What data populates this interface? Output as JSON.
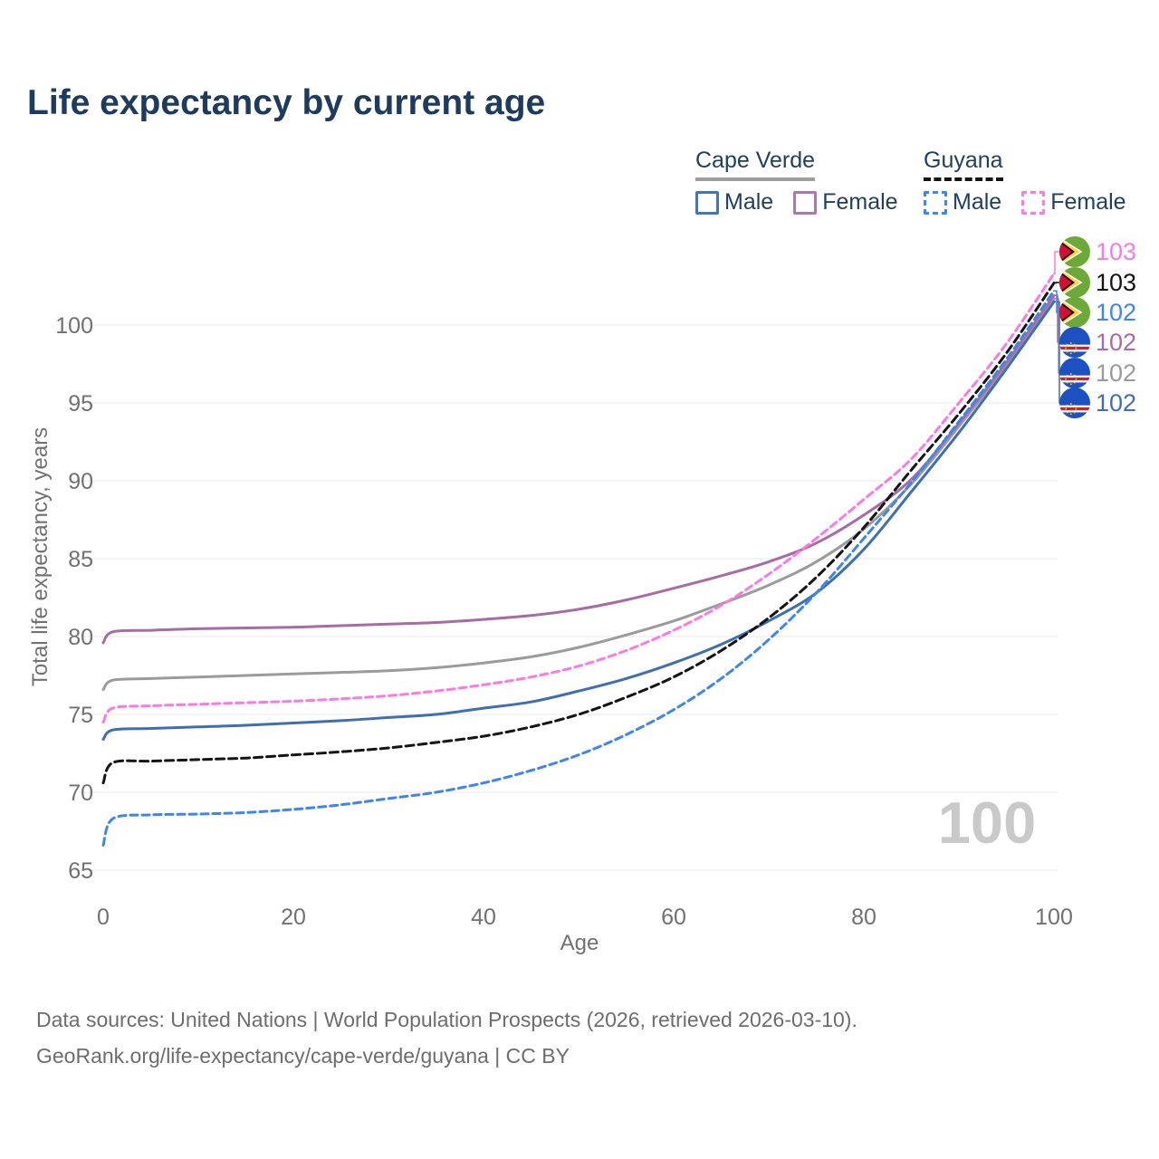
{
  "title": "Life expectancy by current age",
  "legend": {
    "groups": [
      {
        "label": "Cape Verde",
        "line_style": "solid",
        "line_color": "#9e9e9e",
        "items": [
          {
            "label": "Male",
            "color": "#4574ba",
            "dashed": false
          },
          {
            "label": "Female",
            "color": "#b076af",
            "dashed": false
          }
        ]
      },
      {
        "label": "Guyana",
        "line_style": "dashed",
        "line_color": "#141414",
        "items": [
          {
            "label": "Male",
            "color": "#3f86f0",
            "dashed": true
          },
          {
            "label": "Female",
            "color": "#fc7ae3",
            "dashed": true
          }
        ]
      }
    ]
  },
  "chart_data": {
    "type": "line",
    "title": "Life expectancy by current age",
    "xlabel": "Age",
    "ylabel": "Total life expectancy, years",
    "xticks": [
      0,
      20,
      40,
      60,
      80,
      100
    ],
    "yticks": [
      65,
      70,
      75,
      80,
      85,
      90,
      95,
      100
    ],
    "xlim": [
      0,
      100
    ],
    "ylim": [
      64,
      104
    ],
    "grid": "horizontal",
    "legend_position": "top-right",
    "watermark": "100",
    "x": [
      0,
      1,
      5,
      10,
      15,
      20,
      25,
      30,
      35,
      40,
      45,
      50,
      55,
      60,
      65,
      70,
      75,
      80,
      85,
      90,
      95,
      100
    ],
    "series": [
      {
        "name": "Cape Verde Both sexes",
        "country": "Cape Verde",
        "sex": "Both",
        "color": "#9b9b9b",
        "dash": null,
        "label_row": 4,
        "end_label": "102",
        "values": [
          76.6,
          77.2,
          77.3,
          77.4,
          77.5,
          77.6,
          77.7,
          77.8,
          78.0,
          78.3,
          78.7,
          79.3,
          80.1,
          81.0,
          82.1,
          83.3,
          84.8,
          86.9,
          89.8,
          93.5,
          97.4,
          101.7
        ]
      },
      {
        "name": "Cape Verde Female",
        "country": "Cape Verde",
        "sex": "Female",
        "color": "#a76ba6",
        "dash": null,
        "label_row": 3,
        "end_label": "102",
        "values": [
          79.6,
          80.3,
          80.4,
          80.5,
          80.55,
          80.6,
          80.7,
          80.8,
          80.9,
          81.1,
          81.35,
          81.75,
          82.35,
          83.1,
          83.9,
          84.8,
          86.0,
          87.8,
          90.1,
          93.7,
          97.6,
          101.9
        ]
      },
      {
        "name": "Cape Verde Male",
        "country": "Cape Verde",
        "sex": "Male",
        "color": "#3f6eb5",
        "dash": null,
        "label_row": 5,
        "end_label": "102",
        "values": [
          73.4,
          74.0,
          74.1,
          74.2,
          74.3,
          74.45,
          74.6,
          74.8,
          75.0,
          75.4,
          75.8,
          76.5,
          77.3,
          78.3,
          79.5,
          81.0,
          82.8,
          85.6,
          89.3,
          93.1,
          97.2,
          101.5
        ]
      },
      {
        "name": "Guyana Male",
        "country": "Guyana",
        "sex": "Male",
        "color": "#3d85f2",
        "dash": [
          8,
          5
        ],
        "label_row": 2,
        "end_label": "102",
        "values": [
          66.6,
          68.3,
          68.55,
          68.6,
          68.7,
          68.9,
          69.2,
          69.6,
          70.0,
          70.6,
          71.4,
          72.4,
          73.7,
          75.3,
          77.3,
          79.8,
          82.8,
          86.3,
          89.9,
          93.8,
          97.8,
          102.2
        ]
      },
      {
        "name": "Guyana Both sexes",
        "country": "Guyana",
        "sex": "Both",
        "color": "#141414",
        "dash": [
          9,
          5
        ],
        "label_row": 1,
        "end_label": "103",
        "values": [
          70.6,
          71.9,
          72.0,
          72.1,
          72.2,
          72.4,
          72.6,
          72.85,
          73.2,
          73.6,
          74.2,
          75.0,
          76.1,
          77.4,
          79.1,
          81.2,
          83.8,
          87.0,
          90.7,
          94.3,
          98.2,
          102.7
        ]
      },
      {
        "name": "Guyana Female",
        "country": "Guyana",
        "sex": "Female",
        "color": "#fb7ae0",
        "dash": [
          8,
          5
        ],
        "label_row": 0,
        "end_label": "103",
        "values": [
          74.5,
          75.4,
          75.55,
          75.65,
          75.75,
          75.85,
          76.0,
          76.2,
          76.5,
          76.9,
          77.4,
          78.1,
          79.1,
          80.4,
          82.0,
          84.0,
          86.3,
          88.8,
          91.4,
          95.0,
          98.8,
          103.3
        ]
      }
    ]
  },
  "end_labels": [
    {
      "value": "103",
      "color": "#fb7ae0",
      "flag": "Guyana"
    },
    {
      "value": "103",
      "color": "#141414",
      "flag": "Guyana"
    },
    {
      "value": "102",
      "color": "#3d85f2",
      "flag": "Guyana"
    },
    {
      "value": "102",
      "color": "#a76ba6",
      "flag": "Cape Verde"
    },
    {
      "value": "102",
      "color": "#9b9b9b",
      "flag": "Cape Verde"
    },
    {
      "value": "102",
      "color": "#3f6eb5",
      "flag": "Cape Verde"
    }
  ],
  "footer": {
    "line1": "Data sources: United Nations | World Population Prospects (2026, retrieved 2026-03-10).",
    "line2": "GeoRank.org/life-expectancy/cape-verde/guyana | CC BY"
  }
}
